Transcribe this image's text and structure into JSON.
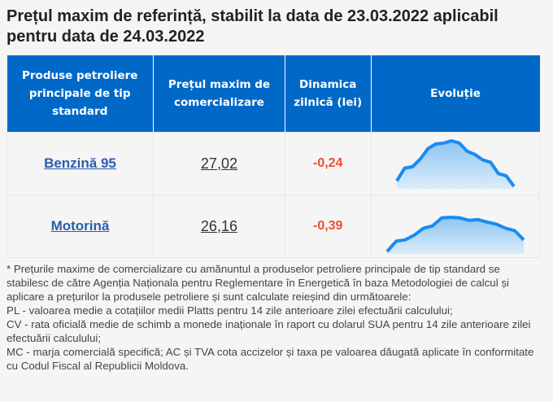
{
  "title": "Prețul maxim de referință, stabilit la data de 23.03.2022 aplicabil pentru data de 24.03.2022",
  "table": {
    "headers": [
      "Produse petroliere principale de tip standard",
      "Prețul maxim de comercializare",
      "Dinamica zilnică (lei)",
      "Evoluție"
    ],
    "rows": [
      {
        "product": "Benzină 95",
        "price": "27,02",
        "dynamic": "-0,24",
        "trend": [
          12,
          40,
          43,
          60,
          83,
          93,
          95,
          100,
          95,
          77,
          70,
          58,
          53,
          28,
          23,
          0
        ]
      },
      {
        "product": "Motorină",
        "price": "26,16",
        "dynamic": "-0,39",
        "trend": [
          0,
          30,
          34,
          48,
          68,
          75,
          98,
          100,
          98,
          91,
          93,
          86,
          80,
          68,
          61,
          34
        ]
      }
    ]
  },
  "notes": [
    "* Prețurile maxime de comercializare cu amănuntul a produselor petroliere principale de tip standard se stabilesc de către Agenția Naționala pentru Reglementare în Energetică în baza Metodologiei de calcul și aplicare a prețurilor la produsele petroliere și sunt calculate reieșind din următoarele:",
    "PL - valoarea medie a cotațiilor medii Platts pentru 14 zile anterioare zilei efectuării calculului;",
    "CV - rata oficială medie de schimb a monede inaționale în raport cu dolarul SUA pentru 14 zile anterioare zilei efectuării calculului;",
    "MC - marja comercială specifică; AC și TVA cota accizelor și taxa pe valoarea dăugată aplicate în conformitate cu Codul Fiscal al Republicii Moldova."
  ],
  "colors": {
    "header": "#0069c8",
    "line": "#1a8cf0",
    "negative": "#f04e2f",
    "link": "#2a5db0"
  }
}
